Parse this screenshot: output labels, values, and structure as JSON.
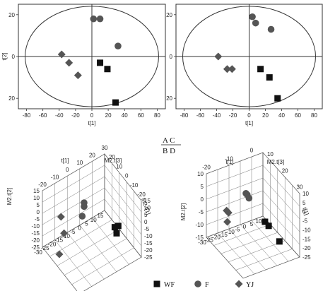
{
  "chart_data": [
    {
      "panel": "A",
      "type": "scatter",
      "xlabel": "t[1]",
      "ylabel": "t[2]",
      "xlim": [
        -90,
        90
      ],
      "ylim": [
        -25,
        25
      ],
      "xticks": [
        "-80",
        "-60",
        "-40",
        "-20",
        "0",
        "20",
        "40",
        "60",
        "80"
      ],
      "yticks": [
        "20",
        "0",
        "20"
      ],
      "series": [
        {
          "name": "WF",
          "marker": "square",
          "points": [
            [
              10,
              -3
            ],
            [
              19,
              -6
            ],
            [
              29,
              -22
            ]
          ]
        },
        {
          "name": "F",
          "marker": "circle",
          "points": [
            [
              2,
              18
            ],
            [
              10,
              18
            ],
            [
              32,
              5
            ]
          ]
        },
        {
          "name": "YJ",
          "marker": "diamond",
          "points": [
            [
              -37,
              1
            ],
            [
              -28,
              -3
            ],
            [
              -17,
              -9
            ]
          ]
        }
      ]
    },
    {
      "panel": "C",
      "type": "scatter",
      "xlabel": "t[1]",
      "ylabel": "",
      "xlim": [
        -90,
        90
      ],
      "ylim": [
        -25,
        25
      ],
      "xticks": [
        "-80",
        "-60",
        "-40",
        "-20",
        "0",
        "20",
        "40",
        "60",
        "80"
      ],
      "yticks": [
        "20",
        "0",
        "20"
      ],
      "series": [
        {
          "name": "WF",
          "marker": "square",
          "points": [
            [
              14,
              -6
            ],
            [
              25,
              -10
            ],
            [
              35,
              -20
            ]
          ]
        },
        {
          "name": "F",
          "marker": "circle",
          "points": [
            [
              4,
              19
            ],
            [
              8,
              16
            ],
            [
              27,
              13
            ]
          ]
        },
        {
          "name": "YJ",
          "marker": "diamond",
          "points": [
            [
              -38,
              0
            ],
            [
              -27,
              -6
            ],
            [
              -21,
              -6
            ]
          ]
        }
      ]
    },
    {
      "panel": "B",
      "type": "scatter3d",
      "axis_labels": [
        "t[1]",
        "M2.t[3]",
        "M2.t[2]",
        "M2.t[1]"
      ],
      "ticks_top": [
        "-20",
        "-10",
        "0",
        "10",
        "20",
        "30",
        "20",
        "10",
        "0",
        "-10",
        "-20"
      ],
      "ticks_left": [
        "15",
        "10",
        "5",
        "0",
        "-5",
        "-10",
        "-15",
        "-20",
        "-25"
      ],
      "ticks_bottom": [
        "-30",
        "-25",
        "-20",
        "-15",
        "-10",
        "-5",
        "0",
        "5",
        "10",
        "15"
      ],
      "ticks_right": [
        "15",
        "10",
        "5",
        "0",
        "-5",
        "-10",
        "-15",
        "-20",
        "-25"
      ],
      "series": [
        {
          "name": "WF",
          "marker": "square",
          "points": [
            [
              12,
              -5,
              -15
            ],
            [
              15,
              -8,
              -15
            ],
            [
              5,
              -12,
              -20
            ]
          ]
        },
        {
          "name": "F",
          "marker": "circle",
          "points": [
            [
              0,
              18,
              0
            ],
            [
              0,
              15,
              0
            ],
            [
              2,
              10,
              2
            ]
          ]
        },
        {
          "name": "YJ",
          "marker": "diamond",
          "points": [
            [
              -25,
              -5,
              5
            ],
            [
              -20,
              -15,
              5
            ],
            [
              -15,
              -25,
              10
            ]
          ]
        }
      ]
    },
    {
      "panel": "D",
      "type": "scatter3d",
      "axis_labels": [
        "t[1]",
        "M2.t[3]",
        "M2.t[2]",
        "t[1]"
      ],
      "ticks_top": [
        "-20",
        "-10",
        "0",
        "10",
        "20",
        "30"
      ],
      "ticks_left": [
        "10",
        "5",
        "0",
        "-5",
        "-10",
        "-15"
      ],
      "ticks_bottom": [
        "-30",
        "-25",
        "-20",
        "-15",
        "-10",
        "-5",
        "0",
        "5",
        "10"
      ],
      "ticks_right": [
        "10",
        "5",
        "0",
        "-5",
        "-10",
        "-15",
        "-20",
        "-25"
      ],
      "series": [
        {
          "name": "WF",
          "marker": "square",
          "points": [
            [
              8,
              -5,
              -10
            ],
            [
              14,
              -5,
              -10
            ],
            [
              20,
              -15,
              -15
            ]
          ]
        },
        {
          "name": "F",
          "marker": "circle",
          "points": [
            [
              0,
              15,
              0
            ],
            [
              2,
              15,
              0
            ],
            [
              5,
              14,
              0
            ]
          ]
        },
        {
          "name": "YJ",
          "marker": "diamond",
          "points": [
            [
              -20,
              -5,
              5
            ],
            [
              -17,
              -5,
              5
            ],
            [
              -12,
              -8,
              8
            ]
          ]
        }
      ]
    }
  ],
  "panel_labels": {
    "top": "A  C",
    "bottom": "B  D"
  },
  "legend": [
    {
      "name": "WF",
      "marker": "square"
    },
    {
      "name": "F",
      "marker": "circle"
    },
    {
      "name": "YJ",
      "marker": "diamond"
    }
  ]
}
